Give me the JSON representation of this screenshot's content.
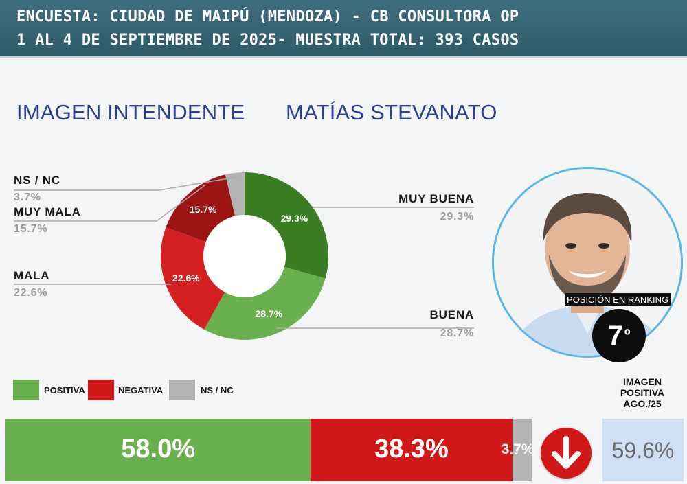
{
  "header": {
    "line1": "ENCUESTA: CIUDAD DE MAIPÚ (MENDOZA) - CB CONSULTORA OP",
    "line2": "1 AL 4 DE SEPTIEMBRE DE 2025- MUESTRA TOTAL: 393 CASOS"
  },
  "headings": {
    "left": "IMAGEN INTENDENTE",
    "right": "MATÍAS STEVANATO"
  },
  "chart_data": [
    {
      "type": "pie",
      "donut": true,
      "order": "clockwise-from-top",
      "slices": [
        {
          "label": "MUY BUENA",
          "value": 29.3,
          "display": "29.3%",
          "color": "#3a7d22"
        },
        {
          "label": "BUENA",
          "value": 28.7,
          "display": "28.7%",
          "color": "#6bb04e"
        },
        {
          "label": "MALA",
          "value": 22.6,
          "display": "22.6%",
          "color": "#d42020"
        },
        {
          "label": "MUY MALA",
          "value": 15.7,
          "display": "15.7%",
          "color": "#9c1414"
        },
        {
          "label": "NS / NC",
          "value": 3.7,
          "display": "3.7%",
          "color": "#b3b3b3"
        }
      ]
    },
    {
      "type": "bar",
      "orientation": "horizontal-stacked",
      "series": [
        {
          "name": "POSITIVA",
          "value": 58.0,
          "display": "58.0%",
          "color": "#6bb04e"
        },
        {
          "name": "NEGATIVA",
          "value": 38.3,
          "display": "38.3%",
          "color": "#d01818"
        },
        {
          "name": "NS / NC",
          "value": 3.7,
          "display": "3.7%",
          "color": "#b3b3b3"
        }
      ]
    }
  ],
  "legend": [
    {
      "label": "POSITIVA",
      "color": "#6bb04e"
    },
    {
      "label": "NEGATIVA",
      "color": "#d01818"
    },
    {
      "label": "NS / NC",
      "color": "#b3b3b3"
    }
  ],
  "ranking": {
    "label": "POSICIÓN EN RANKING",
    "position": "7",
    "suffix": "º"
  },
  "previous": {
    "label_line1": "IMAGEN",
    "label_line2": "POSITIVA",
    "label_line3": "AGO./25",
    "value": "59.6%"
  },
  "trend": {
    "direction": "down",
    "icon": "arrow-down-icon",
    "color": "#d01818"
  }
}
